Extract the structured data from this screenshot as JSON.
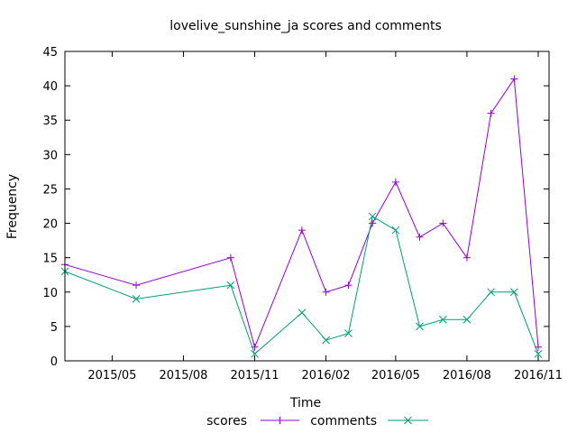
{
  "chart_data": {
    "type": "line",
    "title": "lovelive_sunshine_ja scores and comments",
    "xlabel": "Time",
    "ylabel": "Frequency",
    "x": [
      "2015-03-01",
      "2015-06-01",
      "2015-10-01",
      "2015-11-01",
      "2016-01-01",
      "2016-02-01",
      "2016-03-01",
      "2016-04-01",
      "2016-05-01",
      "2016-06-01",
      "2016-07-01",
      "2016-08-01",
      "2016-09-01",
      "2016-10-01",
      "2016-11-01"
    ],
    "xlim": [
      "2015-03-01",
      "2016-11-15"
    ],
    "xticks": [
      "2015/05",
      "2015/08",
      "2015/11",
      "2016/02",
      "2016/05",
      "2016/08",
      "2016/11"
    ],
    "ylim": [
      0,
      45
    ],
    "yticks": [
      "0",
      "5",
      "10",
      "15",
      "20",
      "25",
      "30",
      "35",
      "40",
      "45"
    ],
    "grid": false,
    "legend_position": "bottom",
    "series": [
      {
        "name": "scores",
        "color": "#9400d3",
        "marker": "plus",
        "values": [
          14,
          11,
          15,
          2,
          19,
          10,
          11,
          20,
          26,
          18,
          20,
          15,
          36,
          41,
          2
        ]
      },
      {
        "name": "comments",
        "color": "#009e73",
        "marker": "cross",
        "values": [
          13,
          9,
          11,
          1,
          7,
          3,
          4,
          21,
          19,
          5,
          6,
          6,
          10,
          10,
          1
        ]
      }
    ]
  }
}
